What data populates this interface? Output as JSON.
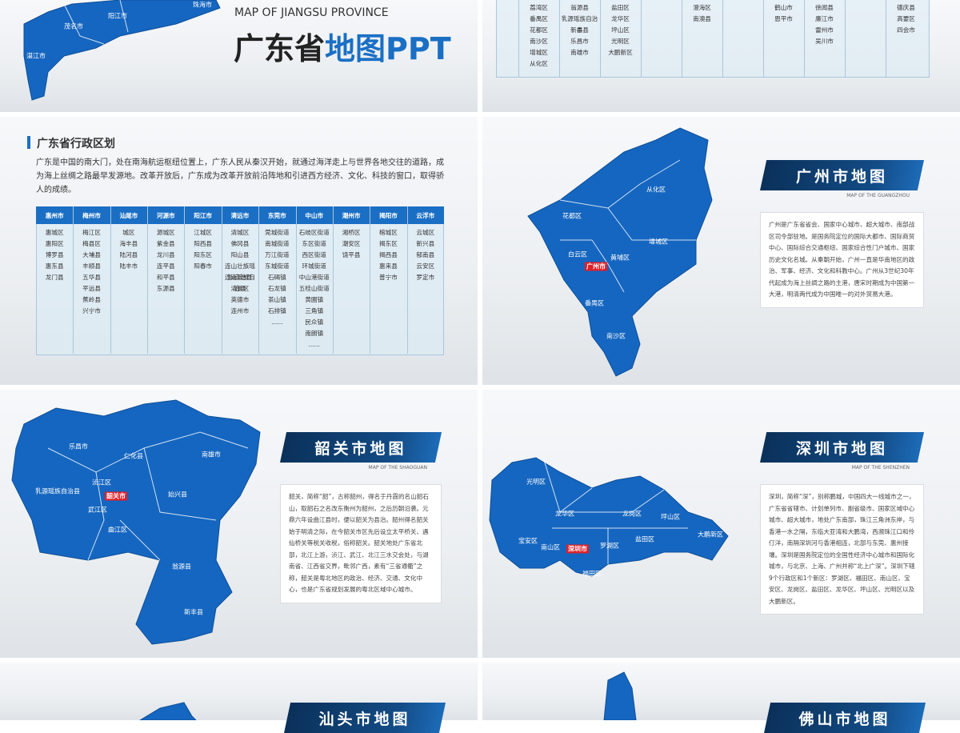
{
  "slides": [
    {
      "title_en": "MAP OF JIANGSU PROVINCE",
      "title_main": "广东省",
      "title_accent": "地图PPT",
      "map_labels": [
        "茂名市",
        "阳江市",
        "珠海市",
        "湛江市"
      ]
    },
    {
      "table_columns": [
        [
          "荔湾区",
          "番禺区",
          "花都区",
          "南沙区",
          "增城区",
          "从化区"
        ],
        [
          "翁源县",
          "乳源瑶族自治县",
          "新丰县",
          "乐昌市",
          "南雄市"
        ],
        [
          "盐田区",
          "龙华区",
          "坪山区",
          "光明区",
          "大鹏新区"
        ],
        [],
        [
          "澄海区",
          "南澳县"
        ],
        [],
        [
          "鹤山市",
          "恩平市"
        ],
        [
          "徐闻县",
          "廉江市",
          "雷州市",
          "吴川市"
        ],
        [],
        [
          "德庆县",
          "高要区",
          "四会市"
        ]
      ]
    },
    {
      "heading": "广东省行政区划",
      "text": "广东是中国的南大门，处在南海航运枢纽位置上，广东人民从秦汉开始，就通过海洋走上与世界各地交往的道路，成为海上丝绸之路最早发源地。改革开放后，广东成为改革开放前沿阵地和引进西方经济、文化、科技的窗口，取得骄人的成绩。",
      "table": {
        "headers": [
          "惠州市",
          "梅州市",
          "汕尾市",
          "河源市",
          "阳江市",
          "清远市",
          "东莞市",
          "中山市",
          "潮州市",
          "揭阳市",
          "云浮市"
        ],
        "columns": [
          [
            "惠城区",
            "惠阳区",
            "博罗县",
            "惠东县",
            "龙门县"
          ],
          [
            "梅江区",
            "梅县区",
            "大埔县",
            "丰顺县",
            "五华县",
            "平远县",
            "蕉岭县",
            "兴宁市"
          ],
          [
            "城区",
            "海丰县",
            "陆河县",
            "陆丰市"
          ],
          [
            "源城区",
            "紫金县",
            "龙川县",
            "连平县",
            "和平县",
            "东源县"
          ],
          [
            "江城区",
            "阳西县",
            "阳东区",
            "阳春市"
          ],
          [
            "清城区",
            "佛冈县",
            "阳山县",
            "连山壮族瑶族自治县",
            "连南瑶族自治县",
            "清新区",
            "英德市",
            "连州市"
          ],
          [
            "莞城街道",
            "南城街道",
            "万江街道",
            "东城街道",
            "石碣镇",
            "石龙镇",
            "茶山镇",
            "石排镇",
            "......"
          ],
          [
            "石岐区街道",
            "东区街道",
            "西区街道",
            "环城街道",
            "中山港街道",
            "五桂山街道",
            "黄圃镇",
            "三角镇",
            "民众镇",
            "南朗镇",
            "......"
          ],
          [
            "湘桥区",
            "潮安区",
            "饶平县"
          ],
          [
            "榕城区",
            "揭东区",
            "揭西县",
            "惠来县",
            "普宁市"
          ],
          [
            "云城区",
            "新兴县",
            "郁南县",
            "云安区",
            "罗定市"
          ]
        ]
      }
    },
    {
      "title": "广州市地图",
      "subtitle": "MAP OF THE GUANGZHOU",
      "map_labels": [
        "从化区",
        "花都区",
        "增城区",
        "白云区",
        "黄埔区",
        "广州市",
        "番禺区",
        "南沙区"
      ],
      "text": "广州是广东省省会、国家中心城市、超大城市、南部战区司令部驻地。是国务院定位的国际大都市、国际商贸中心、国际综合交通枢纽、国家综合性门户城市、国家历史文化名城。从秦朝开始，广州一直是华南地区的政治、军事、经济、文化和科教中心。广州从3世纪30年代起成为海上丝绸之路的主港，唐宋时期成为中国第一大港，明清两代成为中国唯一的对外贸易大港。"
    },
    {
      "title": "韶关市地图",
      "subtitle": "MAP OF THE SHAOGUAN",
      "map_labels": [
        "乐昌市",
        "仁化县",
        "南雄市",
        "乳源瑶族自治县",
        "浈江区",
        "韶关市",
        "武江区",
        "曲江区",
        "始兴县",
        "翁源县",
        "新丰县"
      ],
      "text": "韶关，简称“韶”，古称韶州，得名于丹霞的名山韶石山，取韶石之名改东衡州为韶州，之后历朝沿袭。元鼎六年设曲江县时，便以韶关为县治。韶州得名韶关始于明清之际，在今韶关市区先后设立太平桥关、遇仙桥关等税关收税，俗称韶关。韶关地处广东省北部，北江上游，浈江、武江、北江三水交会处，与湖南省、江西省交界，毗邻广西，素有“三省通衢”之称，韶关是粤北地区的政治、经济、交通、文化中心，也是广东省规划发展的粤北区域中心城市。"
    },
    {
      "title": "深圳市地图",
      "subtitle": "MAP OF THE SHENZHEN",
      "map_labels": [
        "光明区",
        "龙华区",
        "龙岗区",
        "坪山区",
        "大鹏新区",
        "宝安区",
        "南山区",
        "深圳市",
        "罗湖区",
        "盐田区",
        "福田区"
      ],
      "text": "深圳，简称“深”，别称鹏城，中国四大一线城市之一，广东省省辖市、计划单列市、副省级市、国家区域中心城市、超大城市，地处广东南部，珠江三角洲东岸，与香港一水之隔，东临大亚湾和大鹏湾，西濒珠江口和伶仃洋，南隔深圳河与香港相连，北部与东莞、惠州接壤。深圳是国务院定位的全国性经济中心城市和国际化城市，与北京、上海、广州并称“北上广深”。深圳下辖9个行政区和1个新区：罗湖区、福田区、南山区、宝安区、龙岗区、盐田区、龙华区、坪山区、光明区以及大鹏新区。"
    },
    {
      "title": "汕头市地图"
    },
    {
      "title": "佛山市地图"
    }
  ]
}
